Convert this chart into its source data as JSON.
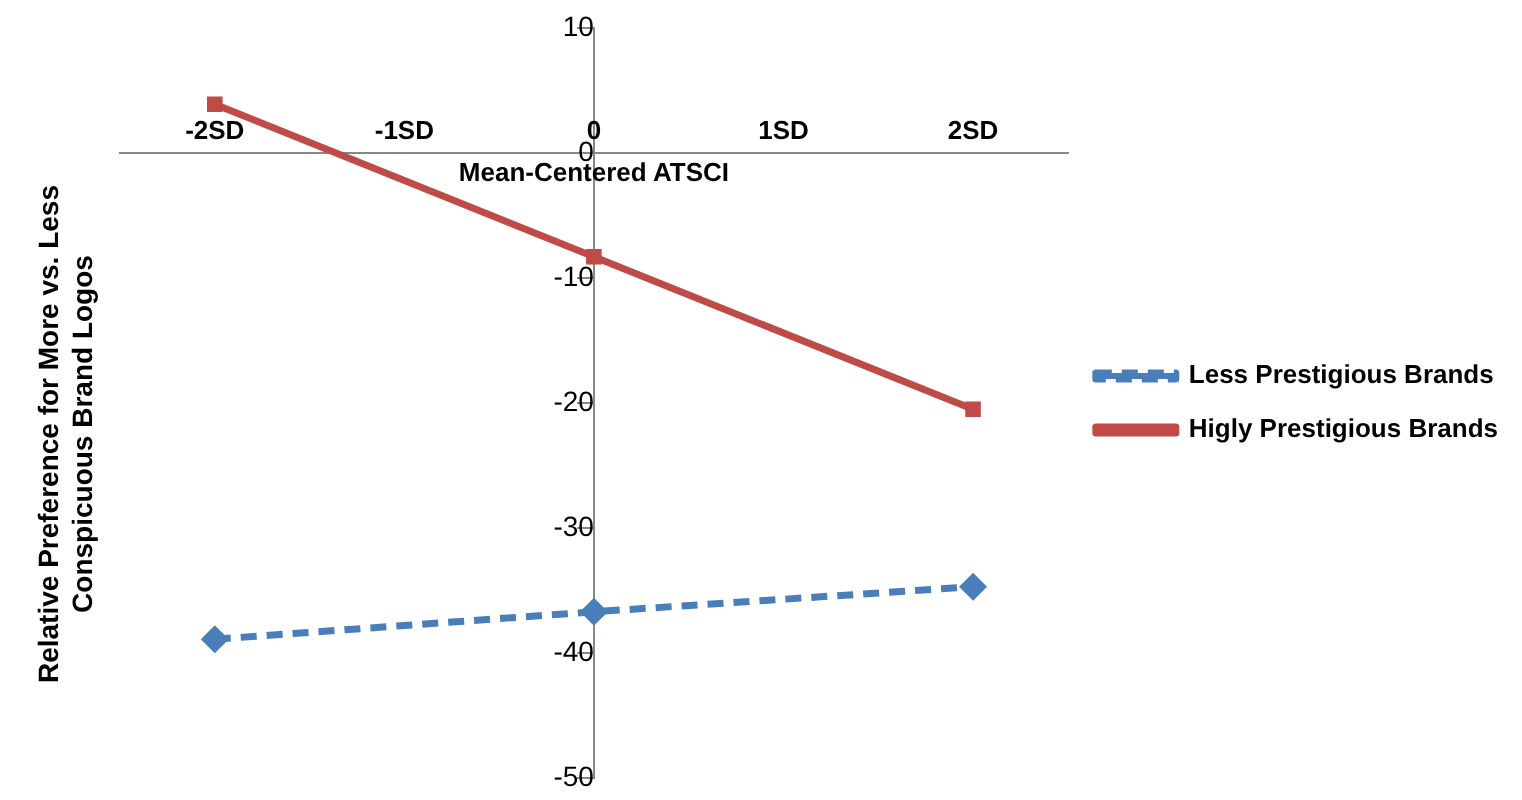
{
  "chart_data": {
    "type": "line",
    "xlabel": "Mean-Centered ATSCI",
    "ylabel": "Relative Preference for More vs. Less Conspicuous Brand Logos",
    "categories": [
      "-2SD",
      "-1SD",
      "0",
      "1SD",
      "2SD"
    ],
    "series": [
      {
        "name": "Less Prestigious Brands",
        "color": "#4a7ebb",
        "values": [
          -38.9,
          null,
          -36.7,
          null,
          -34.7
        ],
        "marker": "diamond",
        "line_style": "dashed"
      },
      {
        "name": "Higly Prestigious Brands",
        "color": "#be4b48",
        "values": [
          3.9,
          null,
          -8.3,
          null,
          -20.5
        ],
        "marker": "square",
        "line_style": "solid"
      }
    ],
    "ylim": [
      -50,
      10
    ],
    "yticks": [
      -50,
      -40,
      -30,
      -20,
      -10,
      0,
      10
    ],
    "grid": false,
    "legend": "right"
  }
}
